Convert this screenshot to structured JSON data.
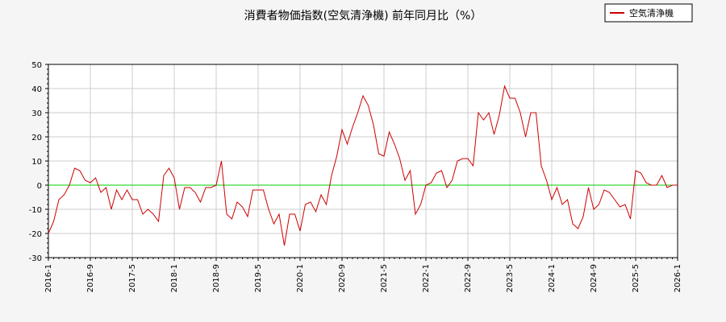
{
  "chart_data": {
    "type": "line",
    "title": "消費者物価指数(空気清浄機) 前年同月比（%）",
    "xlabel": "",
    "ylabel": "",
    "ylim": [
      -30,
      50
    ],
    "yticks": [
      -30,
      -20,
      -10,
      0,
      10,
      20,
      30,
      40,
      50
    ],
    "x_tick_labels": [
      "2016-1",
      "2016-9",
      "2017-5",
      "2018-1",
      "2018-9",
      "2019-5",
      "2020-1",
      "2020-9",
      "2021-5",
      "2022-1",
      "2022-9",
      "2023-5",
      "2024-1",
      "2024-9",
      "2025-5",
      "2026-1"
    ],
    "grid": true,
    "legend": "top-right",
    "reference_line": 0,
    "colors": {
      "series": "#cc0000",
      "zero_line": "#00cc00",
      "grid": "#cccccc",
      "background": "#f5f5f5",
      "plot_bg": "#ffffff"
    },
    "series": [
      {
        "name": "空気清浄機",
        "x_start": "2016-1",
        "values": [
          -20,
          -15,
          -6,
          -4,
          0,
          7,
          6,
          2,
          1,
          3,
          -3,
          -1,
          -10,
          -2,
          -6,
          -2,
          -6,
          -6,
          -12,
          -10,
          -12,
          -15,
          4,
          7,
          3,
          -10,
          -1,
          -1,
          -3,
          -7,
          -1,
          -1,
          0,
          10,
          -12,
          -14,
          -7,
          -9,
          -13,
          -2,
          -2,
          -2,
          -10,
          -16,
          -12,
          -25,
          -12,
          -12,
          -19,
          -8,
          -7,
          -11,
          -4,
          -8,
          4,
          12,
          23,
          17,
          24,
          30,
          37,
          33,
          25,
          13,
          12,
          22,
          17,
          11,
          2,
          6,
          -12,
          -8,
          0,
          1,
          5,
          6,
          -1,
          2,
          10,
          11,
          11,
          8,
          30,
          27,
          30,
          21,
          29,
          41,
          36,
          36,
          30,
          20,
          30,
          30,
          8,
          2,
          -6,
          -1,
          -8,
          -6,
          -16,
          -18,
          -13,
          -1,
          -10,
          -8,
          -2,
          -3,
          -6,
          -9,
          -8,
          -14,
          6,
          5,
          1,
          0,
          0,
          4,
          -1,
          0,
          0
        ]
      }
    ]
  }
}
